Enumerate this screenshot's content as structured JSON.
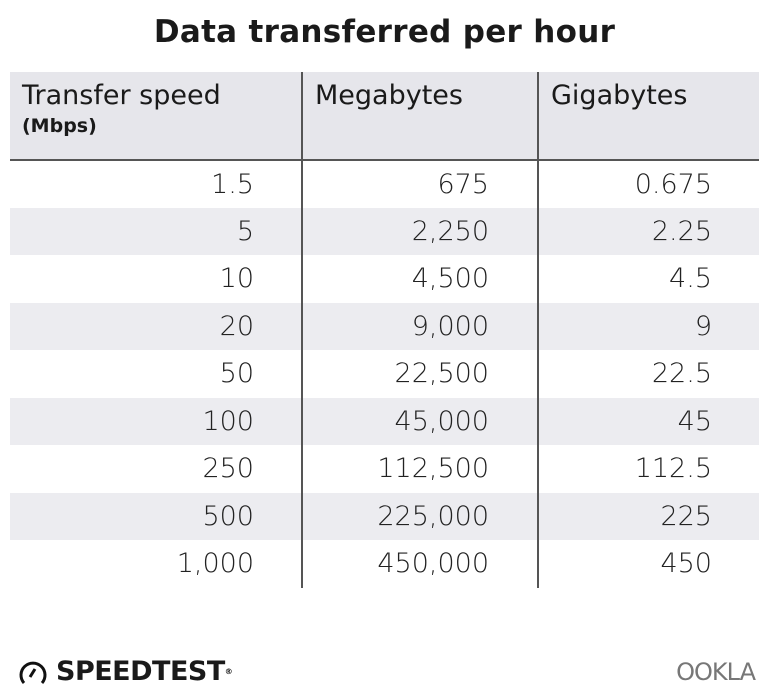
{
  "title": "Data transferred per hour",
  "headers": [
    {
      "label": "Transfer speed",
      "sub": "(Mbps)"
    },
    {
      "label": "Megabytes"
    },
    {
      "label": "Gigabytes"
    }
  ],
  "rows": [
    [
      "1.5",
      "675",
      "0.675"
    ],
    [
      "5",
      "2,250",
      "2.25"
    ],
    [
      "10",
      "4,500",
      "4.5"
    ],
    [
      "20",
      "9,000",
      "9"
    ],
    [
      "50",
      "22,500",
      "22.5"
    ],
    [
      "100",
      "45,000",
      "45"
    ],
    [
      "250",
      "112,500",
      "112.5"
    ],
    [
      "500",
      "225,000",
      "225"
    ],
    [
      "1,000",
      "450,000",
      "450"
    ]
  ],
  "footer": {
    "left_logo": "SPEEDTEST",
    "left_logo_icon": "speedometer-icon",
    "right_logo": "OOKLA"
  }
}
